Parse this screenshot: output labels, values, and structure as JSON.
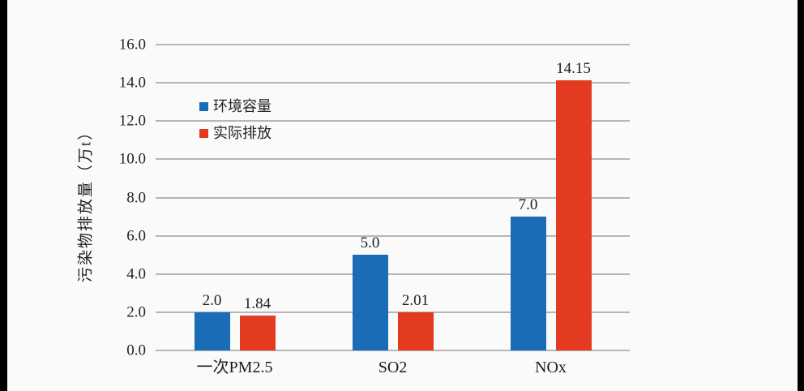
{
  "page": {
    "background_color": "#fbfafb",
    "edge_bar_color": "#000000"
  },
  "chart_data": {
    "type": "bar",
    "title": "",
    "categories": [
      "一次PM2.5",
      "SO2",
      "NOx"
    ],
    "series": [
      {
        "name": "环境容量",
        "color": "#1b6cb7",
        "values": [
          2.0,
          5.0,
          7.0
        ],
        "labels": [
          "2.0",
          "5.0",
          "7.0"
        ]
      },
      {
        "name": "实际排放",
        "color": "#e23b20",
        "values": [
          1.84,
          2.01,
          14.15
        ],
        "labels": [
          "1.84",
          "2.01",
          "14.15"
        ]
      }
    ],
    "xlabel": "",
    "ylabel": "污染物排放量（万t）",
    "ylim": [
      0,
      16
    ],
    "ytick_step": 2,
    "yticks": [
      "0.0",
      "2.0",
      "4.0",
      "6.0",
      "8.0",
      "10.0",
      "12.0",
      "14.0",
      "16.0"
    ],
    "grid": true,
    "gridline_color": "#b7b5b5",
    "legend_position": "inside-upper-left",
    "text_color": "#242323"
  }
}
